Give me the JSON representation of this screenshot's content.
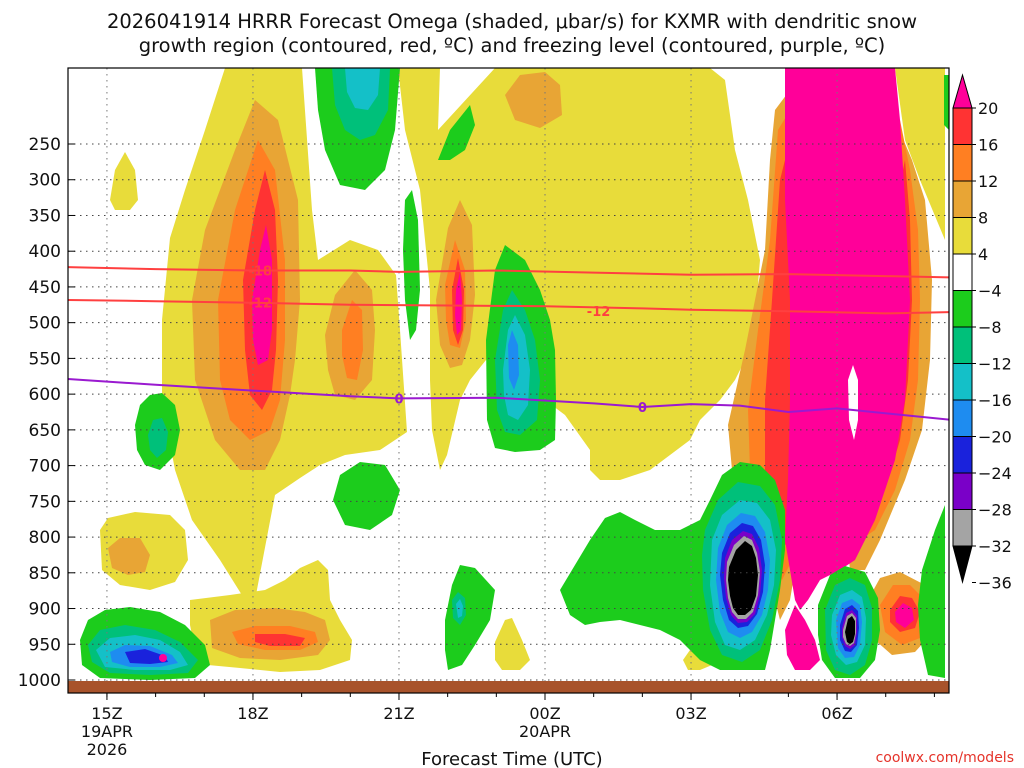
{
  "title": {
    "line1": "2026041914 HRRR Forecast Omega (shaded, μbar/s) for KXMR with dendritic snow",
    "line2": "growth region (contoured, red, ºC) and freezing level (contoured, purple, ºC)"
  },
  "credit": "coolwx.com/models",
  "chart_data": {
    "type": "time-height cross section",
    "xlabel": "Forecast Time (UTC)",
    "ylabel": "",
    "x_ticks": [
      {
        "hour": 0,
        "line1": "15Z",
        "line2": "19APR",
        "line3": "2026"
      },
      {
        "hour": 3,
        "line1": "18Z",
        "line2": "",
        "line3": ""
      },
      {
        "hour": 6,
        "line1": "21Z",
        "line2": "",
        "line3": ""
      },
      {
        "hour": 9,
        "line1": "00Z",
        "line2": "20APR",
        "line3": ""
      },
      {
        "hour": 12,
        "line1": "03Z",
        "line2": "",
        "line3": ""
      },
      {
        "hour": 15,
        "line1": "06Z",
        "line2": "",
        "line3": ""
      }
    ],
    "xlim_hours": [
      -0.8,
      17.3
    ],
    "y_ticks": [
      250,
      300,
      350,
      400,
      450,
      500,
      550,
      600,
      650,
      700,
      750,
      800,
      850,
      900,
      950,
      1000
    ],
    "y_units": "hPa",
    "colorbar": {
      "units": "μbar/s",
      "labels": [
        "20",
        "16",
        "12",
        "8",
        "4",
        "−4",
        "−8",
        "−12",
        "−16",
        "−20",
        "−24",
        "−28",
        "−32",
        "−36"
      ],
      "colors": [
        "#ff0099",
        "#ff3333",
        "#ff7f22",
        "#e8a535",
        "#e8dc3a",
        "#ffffff",
        "#1ccc1c",
        "#00c07a",
        "#14c0c8",
        "#1e8cf0",
        "#1a22dc",
        "#7a00c8",
        "#a4a4a4",
        "#000000"
      ]
    },
    "contours": {
      "dgz_color": "#ff4040",
      "freezing_color": "#9a1ad0",
      "dgz_m18": {
        "label": "-18",
        "points": [
          [
            -1,
            422
          ],
          [
            1,
            425
          ],
          [
            3,
            427
          ],
          [
            5,
            427
          ],
          [
            6,
            429
          ],
          [
            8,
            427
          ],
          [
            10,
            430
          ],
          [
            12,
            433
          ],
          [
            14,
            432
          ],
          [
            17.5,
            437
          ]
        ],
        "label_at": [
          3.15,
          427
        ]
      },
      "dgz_m12": {
        "label": "-12",
        "points": [
          [
            -1,
            468
          ],
          [
            1,
            470
          ],
          [
            3,
            472
          ],
          [
            5,
            475
          ],
          [
            7,
            476
          ],
          [
            9,
            477
          ],
          [
            11,
            480
          ],
          [
            12,
            482
          ],
          [
            14,
            484
          ],
          [
            16,
            487
          ],
          [
            17.5,
            485
          ]
        ],
        "label_at": [
          3.15,
          472
        ],
        "label2_at": [
          10.1,
          484
        ]
      },
      "freezing_0": {
        "label": "0",
        "points": [
          [
            -1,
            578
          ],
          [
            1,
            587
          ],
          [
            3,
            595
          ],
          [
            5,
            603
          ],
          [
            6,
            606
          ],
          [
            8,
            605
          ],
          [
            10,
            613
          ],
          [
            11,
            618
          ],
          [
            12,
            614
          ],
          [
            13,
            616
          ],
          [
            14,
            625
          ],
          [
            15,
            620
          ],
          [
            17.5,
            637
          ]
        ],
        "label_at": [
          6,
          606
        ],
        "label2_at": [
          11,
          618
        ]
      }
    },
    "sfc_color": "#a8532b"
  }
}
